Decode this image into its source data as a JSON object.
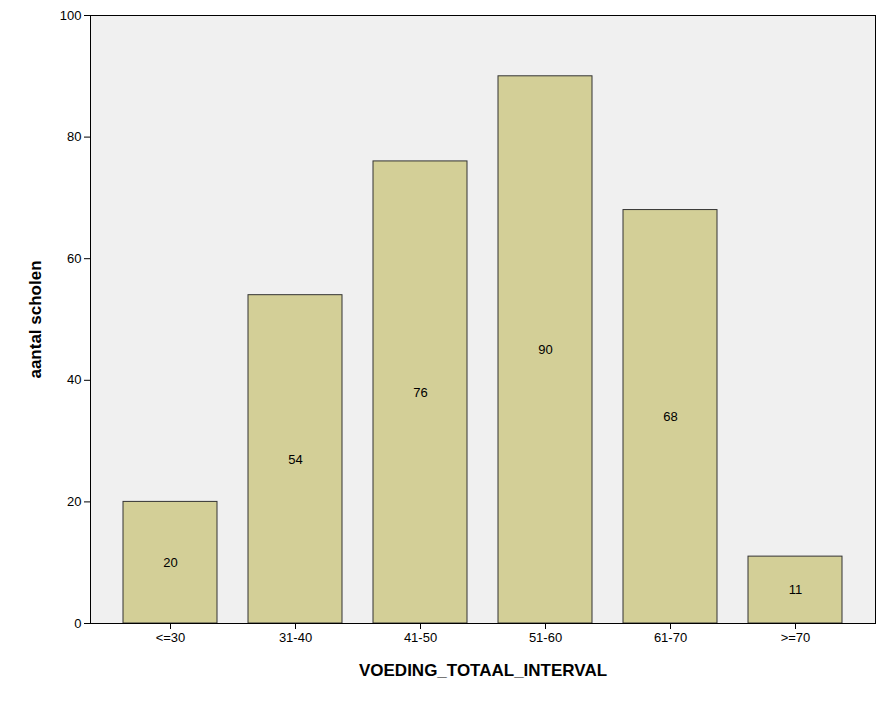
{
  "chart_data": {
    "type": "bar",
    "x_label": "VOEDING_TOTAAL_INTERVAL",
    "y_label": "aantal scholen",
    "categories": [
      "<=30",
      "31-40",
      "41-50",
      "51-60",
      "61-70",
      ">=70"
    ],
    "values": [
      20,
      54,
      76,
      90,
      68,
      11
    ],
    "color": "#d3cf97",
    "ylim": [
      0,
      100
    ],
    "yticks": [
      0,
      20,
      40,
      60,
      80,
      100
    ],
    "grid": false,
    "data_labels": true
  }
}
